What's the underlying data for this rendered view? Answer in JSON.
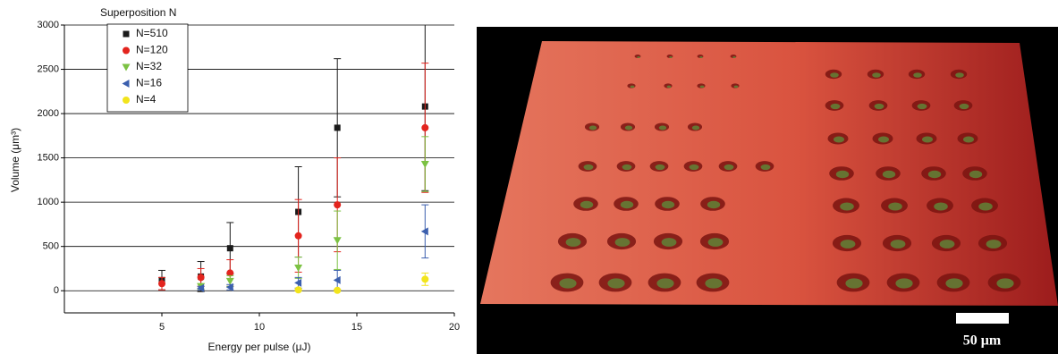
{
  "chart_data": {
    "type": "scatter",
    "x_label": "Energy per pulse (μJ)",
    "y_label": "Volume (μm³)",
    "legend_title": "Superposition N",
    "xlim": [
      0,
      20
    ],
    "xticks": [
      5,
      10,
      15,
      20
    ],
    "ylim": [
      -250,
      3000
    ],
    "yticks": [
      0,
      500,
      1000,
      1500,
      2000,
      2500,
      3000
    ],
    "grid": true,
    "legend": "upper left",
    "series": [
      {
        "name": "N=510",
        "color": "#1a1a1a",
        "marker": "square",
        "x": [
          5,
          7,
          8.5,
          12,
          14,
          18.5
        ],
        "values": [
          120,
          160,
          480,
          890,
          1840,
          2080
        ],
        "errors": [
          110,
          170,
          290,
          510,
          780,
          950
        ]
      },
      {
        "name": "N=120",
        "color": "#e3241e",
        "marker": "circle",
        "x": [
          5,
          7,
          8.5,
          12,
          14,
          18.5
        ],
        "values": [
          80,
          150,
          200,
          620,
          970,
          1840
        ],
        "errors": [
          70,
          100,
          150,
          410,
          530,
          730
        ]
      },
      {
        "name": "N=32",
        "color": "#7cc243",
        "marker": "triangle-down",
        "x": [
          7,
          8.5,
          12,
          14,
          18.5
        ],
        "values": [
          50,
          110,
          260,
          570,
          1430
        ],
        "errors": [
          30,
          60,
          120,
          330,
          310
        ]
      },
      {
        "name": "N=16",
        "color": "#3b5fae",
        "marker": "triangle-left",
        "x": [
          7,
          8.5,
          12,
          14,
          18.5
        ],
        "values": [
          30,
          40,
          90,
          120,
          670
        ],
        "errors": [
          20,
          30,
          60,
          110,
          300
        ]
      },
      {
        "name": "N=4",
        "color": "#f2e41c",
        "marker": "circle",
        "x": [
          12,
          14,
          18.5
        ],
        "values": [
          10,
          5,
          130
        ],
        "errors": [
          10,
          10,
          70
        ]
      }
    ]
  },
  "image": {
    "scale_bar": "50 μm"
  }
}
